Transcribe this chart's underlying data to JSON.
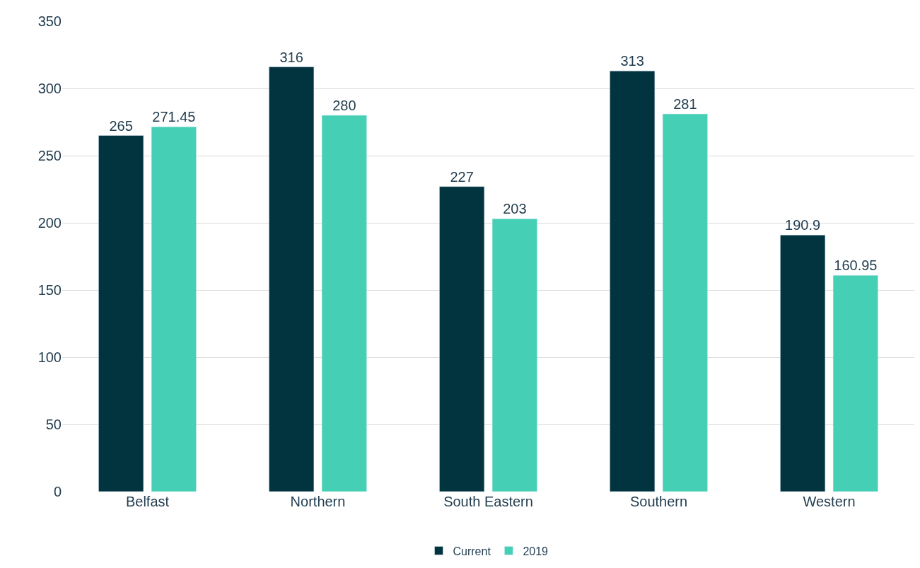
{
  "chart_data": {
    "type": "bar",
    "categories": [
      "Belfast",
      "Northern",
      "South Eastern",
      "Southern",
      "Western"
    ],
    "series": [
      {
        "name": "Current",
        "color": "#023440",
        "values": [
          265,
          316,
          227,
          313,
          190.9
        ]
      },
      {
        "name": "2019",
        "color": "#45cfb5",
        "values": [
          271.45,
          280,
          203,
          281,
          160.95
        ]
      }
    ],
    "ylim": [
      0,
      350
    ],
    "yticks": [
      0,
      50,
      100,
      150,
      200,
      250,
      300,
      350
    ],
    "grid": "y",
    "legend": "bottom",
    "data_labels": true
  }
}
